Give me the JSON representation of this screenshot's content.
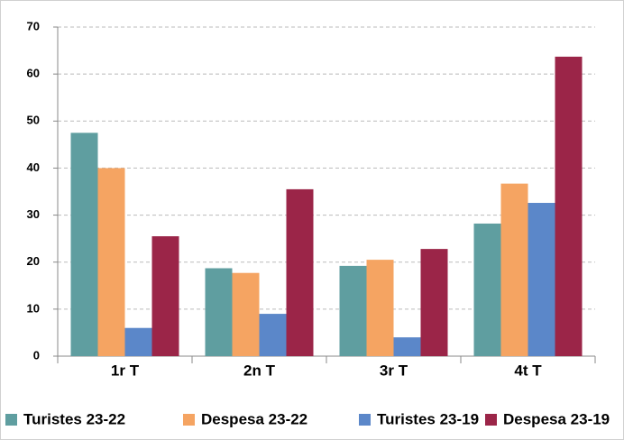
{
  "chart_data": {
    "type": "bar",
    "categories": [
      "1r T",
      "2n T",
      "3r T",
      "4t T"
    ],
    "series": [
      {
        "name": "Turistes 23-22",
        "color": "#5f9ea0",
        "values": [
          47.5,
          18.7,
          19.2,
          28.2
        ]
      },
      {
        "name": "Despesa 23-22",
        "color": "#f5a462",
        "values": [
          40,
          17.7,
          20.5,
          36.7
        ]
      },
      {
        "name": "Turistes 23-19",
        "color": "#5b87c9",
        "values": [
          6,
          9,
          4,
          32.6
        ]
      },
      {
        "name": "Despesa 23-19",
        "color": "#9b2548",
        "values": [
          25.5,
          35.5,
          22.8,
          63.7
        ]
      }
    ],
    "ylim": [
      0,
      70
    ],
    "yticks": [
      0,
      10,
      20,
      30,
      40,
      50,
      60,
      70
    ],
    "grid": true,
    "legend": "bottom"
  }
}
